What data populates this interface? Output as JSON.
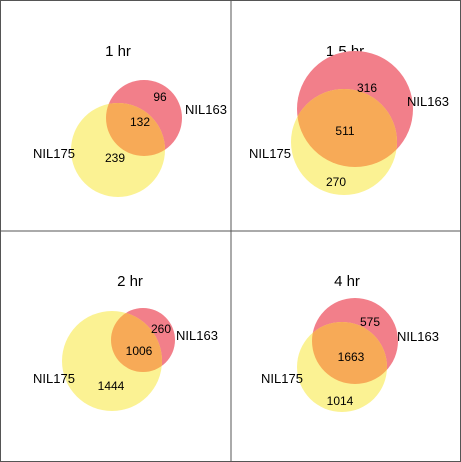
{
  "figure": {
    "colors": {
      "nil163": "#f27f8a",
      "nil175": "#fbf293",
      "overlap": "#f7aa57",
      "frame": "#555555",
      "background": "#ffffff"
    },
    "panels": [
      {
        "title": "1 hr",
        "set_a": {
          "name": "NIL175",
          "only": "239"
        },
        "set_b": {
          "name": "NIL163",
          "only": "96"
        },
        "overlap": "132"
      },
      {
        "title": "1.5 hr",
        "set_a": {
          "name": "NIL175",
          "only": "270"
        },
        "set_b": {
          "name": "NIL163",
          "only": "316"
        },
        "overlap": "511"
      },
      {
        "title": "2 hr",
        "set_a": {
          "name": "NIL175",
          "only": "1444"
        },
        "set_b": {
          "name": "NIL163",
          "only": "260"
        },
        "overlap": "1006"
      },
      {
        "title": "4 hr",
        "set_a": {
          "name": "NIL175",
          "only": "1014"
        },
        "set_b": {
          "name": "NIL163",
          "only": "575"
        },
        "overlap": "1663"
      }
    ]
  }
}
